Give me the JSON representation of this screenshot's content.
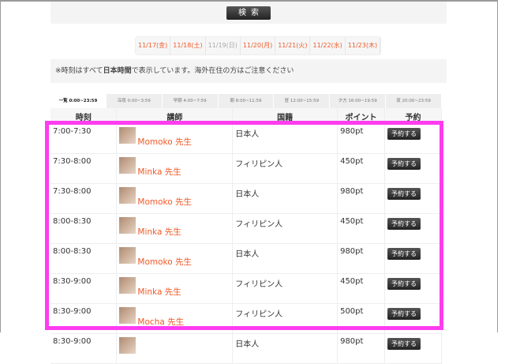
{
  "search": {
    "button": "検索"
  },
  "dates": [
    {
      "label": "11/17(金)",
      "active": true
    },
    {
      "label": "11/18(土)",
      "active": true
    },
    {
      "label": "11/19(日)",
      "active": false
    },
    {
      "label": "11/20(月)",
      "active": true
    },
    {
      "label": "11/21(火)",
      "active": true
    },
    {
      "label": "11/22(水)",
      "active": true
    },
    {
      "label": "11/23(木)",
      "active": true
    }
  ],
  "notice": {
    "prefix": "※時刻はすべて",
    "bold": "日本時間",
    "suffix": "で表示しています。海外在住の方はご注意ください"
  },
  "tabs": [
    "一覧 0:00~23:59",
    "深夜 0:00~3:59",
    "早朝 4:00~7:59",
    "朝 8:00~11:59",
    "昼 12:00~15:59",
    "夕方 16:00~19:59",
    "夜 20:00~23:59"
  ],
  "headers": [
    "時刻",
    "講師",
    "国籍",
    "ポイント",
    "予約"
  ],
  "rows": [
    {
      "time": "7:00-7:30",
      "teacher": "Momoko 先生",
      "nationality": "日本人",
      "points": "980pt",
      "action": "予約する"
    },
    {
      "time": "7:30-8:00",
      "teacher": "Minka 先生",
      "nationality": "フィリピン人",
      "points": "450pt",
      "action": "予約する"
    },
    {
      "time": "7:30-8:00",
      "teacher": "Momoko 先生",
      "nationality": "日本人",
      "points": "980pt",
      "action": "予約する"
    },
    {
      "time": "8:00-8:30",
      "teacher": "Minka 先生",
      "nationality": "フィリピン人",
      "points": "450pt",
      "action": "予約する"
    },
    {
      "time": "8:00-8:30",
      "teacher": "Momoko 先生",
      "nationality": "日本人",
      "points": "980pt",
      "action": "予約する"
    },
    {
      "time": "8:30-9:00",
      "teacher": "Minka 先生",
      "nationality": "フィリピン人",
      "points": "450pt",
      "action": "予約する"
    },
    {
      "time": "8:30-9:00",
      "teacher": "Mocha 先生",
      "nationality": "フィリピン人",
      "points": "500pt",
      "action": "予約する"
    },
    {
      "time": "8:30-9:00",
      "teacher": "",
      "nationality": "日本人",
      "points": "980pt",
      "action": "予約する"
    }
  ],
  "colors": {
    "accent": "#f05a28",
    "highlight": "#ff3cf0"
  }
}
